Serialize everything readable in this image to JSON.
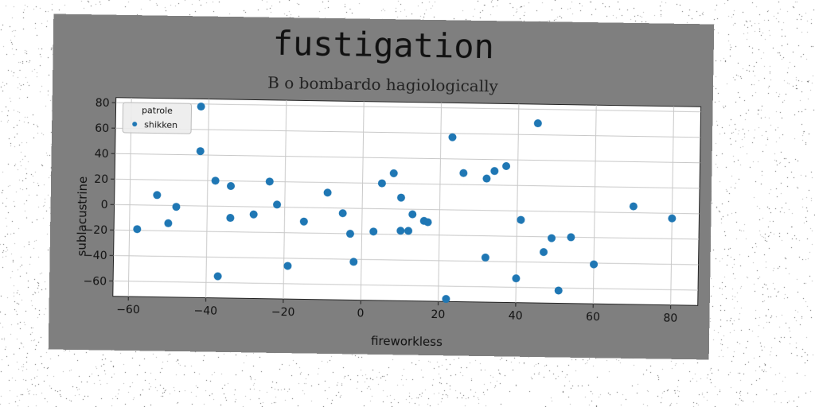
{
  "chart_data": {
    "type": "scatter",
    "title": "fustigation",
    "subtitle": "B o bombardo hagiologically",
    "xlabel": "fireworkless",
    "ylabel": "sublacustrine",
    "xlim": [
      -64,
      87
    ],
    "ylim": [
      -72,
      84
    ],
    "xticks": [
      -60,
      -40,
      -20,
      0,
      20,
      40,
      60,
      80
    ],
    "yticks": [
      -60,
      -40,
      -20,
      0,
      20,
      40,
      60,
      80
    ],
    "grid": true,
    "legend": {
      "title": "patrole",
      "position": "top-left"
    },
    "color": "#1f77b4",
    "series": [
      {
        "name": "shikken",
        "points": [
          [
            -58,
            -19
          ],
          [
            -53,
            8
          ],
          [
            -50,
            -14
          ],
          [
            -48,
            -1
          ],
          [
            -42,
            78
          ],
          [
            -42,
            43
          ],
          [
            -38,
            20
          ],
          [
            -37,
            -55
          ],
          [
            -34,
            16
          ],
          [
            -34,
            -9
          ],
          [
            -28,
            -6
          ],
          [
            -24,
            20
          ],
          [
            -22,
            2
          ],
          [
            -19,
            -46
          ],
          [
            -15,
            -11
          ],
          [
            -9,
            12
          ],
          [
            -5,
            -4
          ],
          [
            -3,
            -20
          ],
          [
            -2,
            -42
          ],
          [
            3,
            -18
          ],
          [
            5,
            20
          ],
          [
            8,
            28
          ],
          [
            10,
            9
          ],
          [
            10,
            -17
          ],
          [
            12,
            -17
          ],
          [
            13,
            -4
          ],
          [
            16,
            -9
          ],
          [
            17,
            -10
          ],
          [
            22,
            -70
          ],
          [
            23,
            57
          ],
          [
            26,
            29
          ],
          [
            32,
            25
          ],
          [
            32,
            -37
          ],
          [
            34,
            31
          ],
          [
            37,
            35
          ],
          [
            40,
            -53
          ],
          [
            41,
            -7
          ],
          [
            45,
            69
          ],
          [
            47,
            -32
          ],
          [
            49,
            -21
          ],
          [
            51,
            -62
          ],
          [
            54,
            -20
          ],
          [
            60,
            -41
          ],
          [
            70,
            5
          ],
          [
            80,
            -4
          ]
        ]
      }
    ]
  }
}
